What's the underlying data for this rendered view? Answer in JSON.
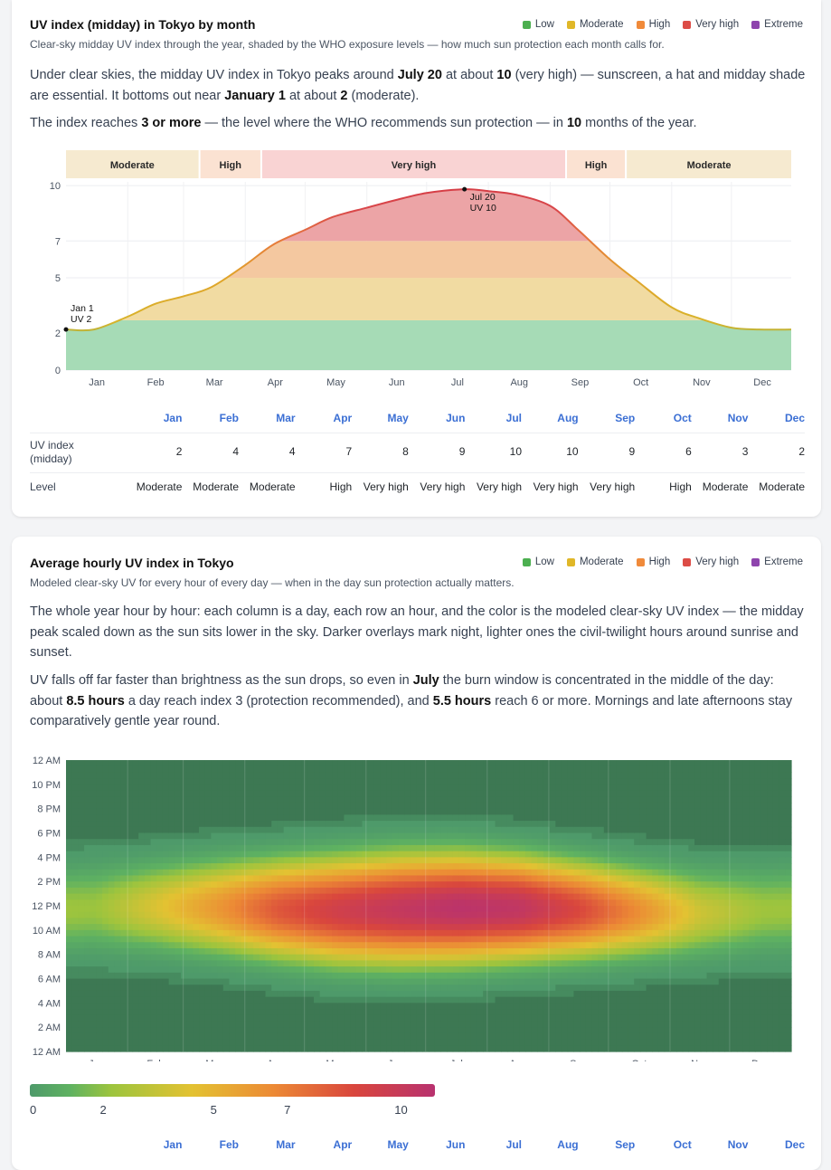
{
  "legend": [
    {
      "label": "Low",
      "color": "#4caf50"
    },
    {
      "label": "Moderate",
      "color": "#e0b728"
    },
    {
      "label": "High",
      "color": "#f08a3a"
    },
    {
      "label": "Very high",
      "color": "#dc4c46"
    },
    {
      "label": "Extreme",
      "color": "#8e44ad"
    }
  ],
  "card1": {
    "title": "UV index (midday) in Tokyo by month",
    "subtitle": "Clear-sky midday UV index through the year, shaded by the WHO exposure levels — how much sun protection each month calls for.",
    "p1": {
      "t1": "Under clear skies, the midday UV index in Tokyo peaks around ",
      "b1": "July 20",
      "t2": " at about ",
      "b2": "10",
      "t3": " (very high) — sunscreen, a hat and midday shade are essential. It bottoms out near ",
      "b3": "January 1",
      "t4": " at about ",
      "b4": "2",
      "t5": " (moderate)."
    },
    "p2": {
      "t1": "The index reaches ",
      "b1": "3 or more",
      "t2": " — the level where the WHO recommends sun protection — in ",
      "b2": "10",
      "t3": " months of the year."
    },
    "table": {
      "row_uv_label": "UV index (midday)",
      "row_level_label": "Level"
    }
  },
  "card2": {
    "title": "Average hourly UV index in Tokyo",
    "subtitle": "Modeled clear-sky UV for every hour of every day — when in the day sun protection actually matters.",
    "p1": "The whole year hour by hour: each column is a day, each row an hour, and the color is the modeled clear-sky UV index — the midday peak scaled down as the sun sits lower in the sky. Darker overlays mark night, lighter ones the civil-twilight hours around sunrise and sunset.",
    "p2": {
      "t1": "UV falls off far faster than brightness as the sun drops, so even in ",
      "b1": "July",
      "t2": " the burn window is concentrated in the middle of the day: about ",
      "b2": "8.5 hours",
      "t3": " a day reach index 3 (protection recommended), and ",
      "b3": "5.5 hours",
      "t4": " reach 6 or more. Mornings and late afternoons stay comparatively gentle year round."
    },
    "scale_ticks": [
      "0",
      "2",
      "5",
      "7",
      "10"
    ]
  },
  "chart_data": [
    {
      "type": "area",
      "title": "UV index (midday) in Tokyo by month",
      "x_label": "",
      "y_label": "",
      "x_ticks": [
        "Jan",
        "Feb",
        "Mar",
        "Apr",
        "May",
        "Jun",
        "Jul",
        "Aug",
        "Sep",
        "Oct",
        "Nov",
        "Dec"
      ],
      "y_ticks": [
        0,
        2,
        5,
        7,
        10
      ],
      "ylim": [
        0,
        10.2
      ],
      "x_days": [
        1,
        15,
        32,
        46,
        60,
        74,
        91,
        105,
        121,
        135,
        152,
        166,
        182,
        201,
        213,
        227,
        244,
        258,
        274,
        288,
        305,
        319,
        335,
        349,
        365
      ],
      "uv": [
        2.2,
        2.2,
        2.9,
        3.6,
        4.0,
        4.5,
        5.7,
        6.8,
        7.6,
        8.3,
        8.8,
        9.2,
        9.6,
        9.8,
        9.7,
        9.5,
        8.9,
        7.6,
        6.0,
        4.8,
        3.4,
        2.8,
        2.3,
        2.2,
        2.2
      ],
      "level_bands": [
        {
          "label": "Moderate",
          "from": "Jan",
          "to": "Mar"
        },
        {
          "label": "High",
          "from": "Mar",
          "to": "Apr"
        },
        {
          "label": "Very high",
          "from": "Apr",
          "to": "Sep"
        },
        {
          "label": "High",
          "from": "Sep",
          "to": "Oct"
        },
        {
          "label": "Moderate",
          "from": "Oct",
          "to": "Dec"
        }
      ],
      "annotations": [
        {
          "label": "Jan 1",
          "value_label": "UV 2",
          "x_day": 1,
          "y": 2.2
        },
        {
          "label": "Jul 20",
          "value_label": "UV 10",
          "x_day": 201,
          "y": 9.8
        }
      ],
      "monthly_table": {
        "months": [
          "Jan",
          "Feb",
          "Mar",
          "Apr",
          "May",
          "Jun",
          "Jul",
          "Aug",
          "Sep",
          "Oct",
          "Nov",
          "Dec"
        ],
        "uv": [
          "2",
          "4",
          "4",
          "7",
          "8",
          "9",
          "10",
          "10",
          "9",
          "6",
          "3",
          "2"
        ],
        "level": [
          "Moderate",
          "Moderate",
          "Moderate",
          "High",
          "Very high",
          "Very high",
          "Very high",
          "Very high",
          "Very high",
          "High",
          "Moderate",
          "Moderate"
        ]
      }
    },
    {
      "type": "heatmap",
      "title": "Average hourly UV index in Tokyo",
      "x_ticks": [
        "Jan",
        "Feb",
        "Mar",
        "Apr",
        "May",
        "Jun",
        "Jul",
        "Aug",
        "Sep",
        "Oct",
        "Nov",
        "Dec"
      ],
      "y_ticks": [
        "12 AM",
        "2 AM",
        "4 AM",
        "6 AM",
        "8 AM",
        "10 AM",
        "12 PM",
        "2 PM",
        "4 PM",
        "6 PM",
        "8 PM",
        "10 PM",
        "12 AM"
      ],
      "colorbar_ticks": [
        0,
        2,
        5,
        7,
        10
      ],
      "peak_midday_uv_by_month": [
        2.2,
        3.8,
        5.5,
        7.5,
        8.6,
        9.3,
        9.8,
        9.5,
        8.0,
        5.8,
        3.4,
        2.3
      ],
      "sunrise_hour_by_month": [
        6.8,
        6.5,
        5.9,
        5.2,
        4.6,
        4.4,
        4.6,
        5.0,
        5.4,
        5.8,
        6.2,
        6.7
      ],
      "sunset_hour_by_month": [
        16.8,
        17.3,
        17.8,
        18.2,
        18.6,
        19.0,
        19.0,
        18.6,
        17.9,
        17.2,
        16.6,
        16.5
      ],
      "months_footer": [
        "Jan",
        "Feb",
        "Mar",
        "Apr",
        "May",
        "Jun",
        "Jul",
        "Aug",
        "Sep",
        "Oct",
        "Nov",
        "Dec"
      ]
    }
  ]
}
